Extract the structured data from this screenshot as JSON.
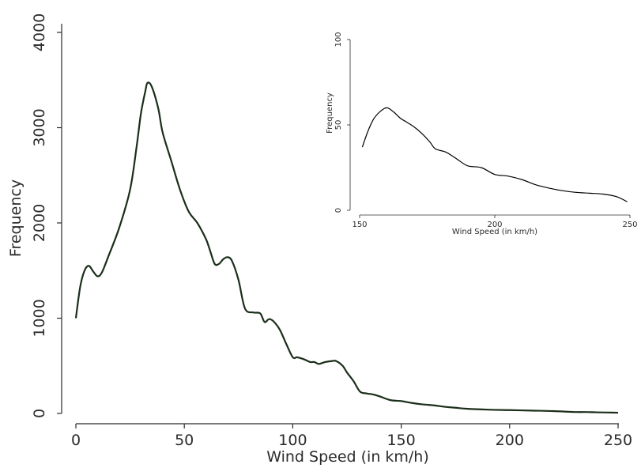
{
  "chart_data": [
    {
      "type": "line",
      "role": "main",
      "xlabel": "Wind Speed (in km/h)",
      "ylabel": "Frequency",
      "xlim": [
        0,
        250
      ],
      "ylim": [
        0,
        4000
      ],
      "xticks": [
        "0",
        "50",
        "100",
        "150",
        "200",
        "250"
      ],
      "yticks": [
        "0",
        "1000",
        "2000",
        "3000",
        "4000"
      ],
      "grid": false,
      "color": "#1a2e1a",
      "series": [
        {
          "x": [
            0,
            2,
            4,
            6,
            8,
            10,
            12,
            15,
            20,
            25,
            28,
            30,
            32,
            33,
            35,
            38,
            40,
            44,
            48,
            52,
            56,
            60,
            62,
            64,
            66,
            68,
            70,
            72,
            75,
            78,
            82,
            85,
            87,
            89,
            91,
            94,
            97,
            100,
            102,
            105,
            108,
            110,
            112,
            115,
            118,
            120,
            123,
            125,
            128,
            131,
            134,
            137,
            140,
            145,
            150,
            155,
            160,
            165,
            170,
            175,
            180,
            190,
            200,
            210,
            220,
            230,
            235,
            240,
            245,
            250
          ],
          "y": [
            1000,
            1330,
            1500,
            1550,
            1490,
            1440,
            1480,
            1650,
            1950,
            2350,
            2800,
            3150,
            3380,
            3470,
            3430,
            3200,
            2950,
            2650,
            2350,
            2120,
            2000,
            1830,
            1700,
            1570,
            1570,
            1620,
            1640,
            1600,
            1400,
            1100,
            1060,
            1050,
            960,
            990,
            970,
            880,
            730,
            590,
            590,
            570,
            540,
            540,
            520,
            540,
            550,
            550,
            500,
            430,
            340,
            230,
            210,
            200,
            180,
            140,
            130,
            110,
            95,
            85,
            70,
            60,
            50,
            40,
            35,
            30,
            25,
            15,
            15,
            12,
            10,
            8
          ]
        }
      ]
    },
    {
      "type": "line",
      "role": "inset",
      "xlabel": "Wind Speed (in km/h)",
      "ylabel": "Frequency",
      "xlim": [
        150,
        250
      ],
      "ylim": [
        0,
        100
      ],
      "xticks": [
        "150",
        "200",
        "250"
      ],
      "yticks": [
        "0",
        "50",
        "100"
      ],
      "grid": false,
      "color": "#000000",
      "series": [
        {
          "x": [
            151,
            153,
            155,
            157,
            159,
            160,
            161,
            163,
            165,
            167,
            170,
            173,
            176,
            178,
            182,
            186,
            190,
            195,
            200,
            205,
            210,
            215,
            220,
            225,
            230,
            235,
            240,
            245,
            249
          ],
          "y": [
            37,
            46,
            53,
            57,
            59.5,
            60,
            59.5,
            57,
            54,
            52,
            49,
            45,
            40,
            36,
            34,
            30,
            26,
            25,
            21,
            20,
            18,
            15,
            13,
            11.5,
            10.5,
            10,
            9.5,
            8,
            5
          ]
        }
      ]
    }
  ]
}
